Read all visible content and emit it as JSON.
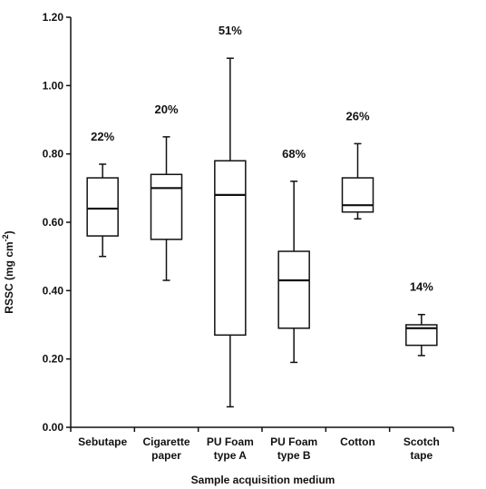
{
  "chart_data": {
    "type": "box",
    "xlabel": "Sample acquisition medium",
    "ylabel_main": "RSSC (mg cm",
    "ylabel_sup": "-2",
    "ylabel_end": ")",
    "ylim": [
      0,
      1.2
    ],
    "yticks": [
      "0.00",
      "0.20",
      "0.40",
      "0.60",
      "0.80",
      "1.00",
      "1.20"
    ],
    "categories": [
      {
        "line1": "Sebutape",
        "line2": ""
      },
      {
        "line1": "Cigarette",
        "line2": "paper"
      },
      {
        "line1": "PU Foam",
        "line2": "type A"
      },
      {
        "line1": "PU Foam",
        "line2": "type B"
      },
      {
        "line1": "Cotton",
        "line2": ""
      },
      {
        "line1": "Scotch",
        "line2": "tape"
      }
    ],
    "boxes": [
      {
        "min": 0.5,
        "q1": 0.56,
        "median": 0.64,
        "q3": 0.73,
        "max": 0.77,
        "label": "22%"
      },
      {
        "min": 0.43,
        "q1": 0.55,
        "median": 0.7,
        "q3": 0.74,
        "max": 0.85,
        "label": "20%"
      },
      {
        "min": 0.06,
        "q1": 0.27,
        "median": 0.68,
        "q3": 0.78,
        "max": 1.08,
        "label": "51%"
      },
      {
        "min": 0.19,
        "q1": 0.29,
        "median": 0.43,
        "q3": 0.515,
        "max": 0.72,
        "label": "68%"
      },
      {
        "min": 0.61,
        "q1": 0.63,
        "median": 0.65,
        "q3": 0.73,
        "max": 0.83,
        "label": "26%"
      },
      {
        "min": 0.21,
        "q1": 0.24,
        "median": 0.29,
        "q3": 0.3,
        "max": 0.33,
        "label": "14%"
      }
    ],
    "grid": false,
    "legend": "none"
  }
}
